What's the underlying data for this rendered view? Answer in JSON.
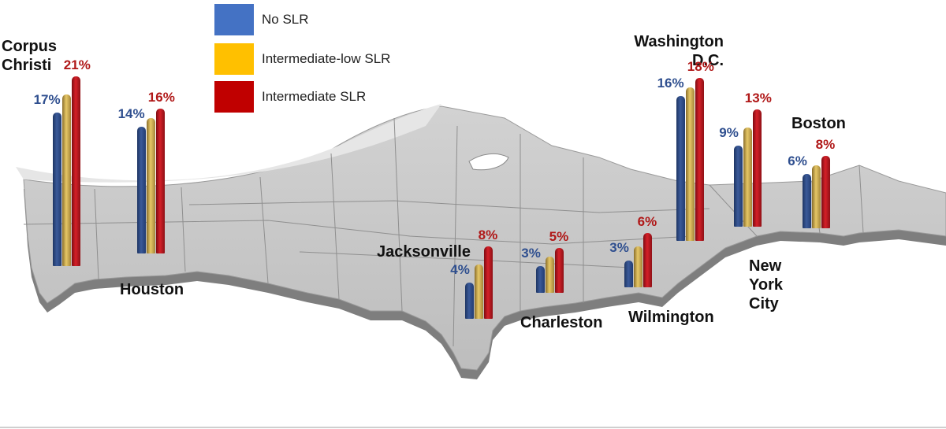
{
  "legend": [
    {
      "label": "No SLR",
      "color": "#4472c4"
    },
    {
      "label": "Intermediate-low SLR",
      "color": "#ffc000"
    },
    {
      "label": "Intermediate SLR",
      "color": "#c00000"
    }
  ],
  "colors": {
    "no_slr_text": "#2f4f8f",
    "intermediate_text": "#b01818",
    "map_fill": "#c8c8c8",
    "map_edge": "#8a8a8a"
  },
  "chart_data": {
    "type": "bar",
    "series": [
      {
        "name": "No SLR",
        "values": [
          17,
          14,
          4,
          3,
          3,
          16,
          9,
          6
        ]
      },
      {
        "name": "Intermediate-low SLR",
        "values": [
          null,
          null,
          null,
          null,
          null,
          null,
          null,
          null
        ]
      },
      {
        "name": "Intermediate SLR",
        "values": [
          21,
          16,
          8,
          5,
          6,
          18,
          13,
          8
        ]
      }
    ],
    "categories": [
      "Corpus Christi",
      "Houston",
      "Jacksonville",
      "Charleston",
      "Wilmington",
      "Washington D.C.",
      "New York City",
      "Boston"
    ],
    "cities": [
      {
        "name_lines": [
          "Corpus",
          "Christi"
        ],
        "no_slr_label": "17%",
        "int_label": "21%"
      },
      {
        "name_lines": [
          "Houston"
        ],
        "no_slr_label": "14%",
        "int_label": "16%"
      },
      {
        "name_lines": [
          "Jacksonville"
        ],
        "no_slr_label": "4%",
        "int_label": "8%"
      },
      {
        "name_lines": [
          "Charleston"
        ],
        "no_slr_label": "3%",
        "int_label": "5%"
      },
      {
        "name_lines": [
          "Wilmington"
        ],
        "no_slr_label": "3%",
        "int_label": "6%"
      },
      {
        "name_lines": [
          "Washington",
          "D.C."
        ],
        "no_slr_label": "16%",
        "int_label": "18%"
      },
      {
        "name_lines": [
          "New",
          "York",
          "City"
        ],
        "no_slr_label": "9%",
        "int_label": "13%"
      },
      {
        "name_lines": [
          "Boston"
        ],
        "no_slr_label": "6%",
        "int_label": "8%"
      }
    ]
  }
}
